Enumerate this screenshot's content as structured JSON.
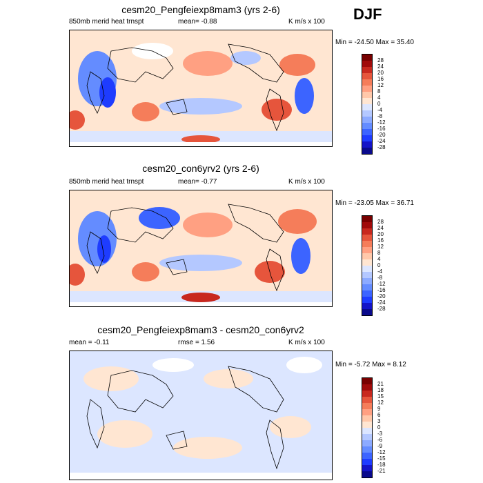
{
  "season": "DJF",
  "palette_diverging": [
    "#0a0a8c",
    "#1414c8",
    "#1e3cff",
    "#3c64ff",
    "#648cff",
    "#8caaff",
    "#b4c8ff",
    "#dce6ff",
    "#ffffff",
    "#ffe6d2",
    "#ffc8aa",
    "#ffa082",
    "#f57d5a",
    "#e6553c",
    "#c8281e",
    "#a00a0a",
    "#780000"
  ],
  "panels": [
    {
      "title": "cesm20_Pengfeiexp8mam3 (yrs 2-6)",
      "left_label": "850mb merid heat trnspt",
      "center_label": "mean=  -0.88",
      "right_label": "K m/s x 100",
      "min_max": "Min = -24.50 Max =  35.40",
      "colorbar_labels": [
        "28",
        "24",
        "20",
        "16",
        "12",
        "8",
        "4",
        "0",
        "-4",
        "-8",
        "-12",
        "-16",
        "-20",
        "-24",
        "-28"
      ]
    },
    {
      "title": "cesm20_con6yrv2 (yrs 2-6)",
      "left_label": "850mb merid heat trnspt",
      "center_label": "mean=  -0.77",
      "right_label": "K m/s x 100",
      "min_max": "Min = -23.05 Max =  36.71",
      "colorbar_labels": [
        "28",
        "24",
        "20",
        "16",
        "12",
        "8",
        "4",
        "0",
        "-4",
        "-8",
        "-12",
        "-16",
        "-20",
        "-24",
        "-28"
      ]
    },
    {
      "title": "cesm20_Pengfeiexp8mam3 - cesm20_con6yrv2",
      "left_label": "mean =  -0.11",
      "center_label": "rmse =   1.56",
      "right_label": "K m/s x 100",
      "min_max": "Min = -5.72 Max =  8.12",
      "colorbar_labels": [
        "21",
        "18",
        "15",
        "12",
        "9",
        "6",
        "3",
        "0",
        "-3",
        "-6",
        "-9",
        "-12",
        "-15",
        "-18",
        "-21"
      ]
    }
  ]
}
